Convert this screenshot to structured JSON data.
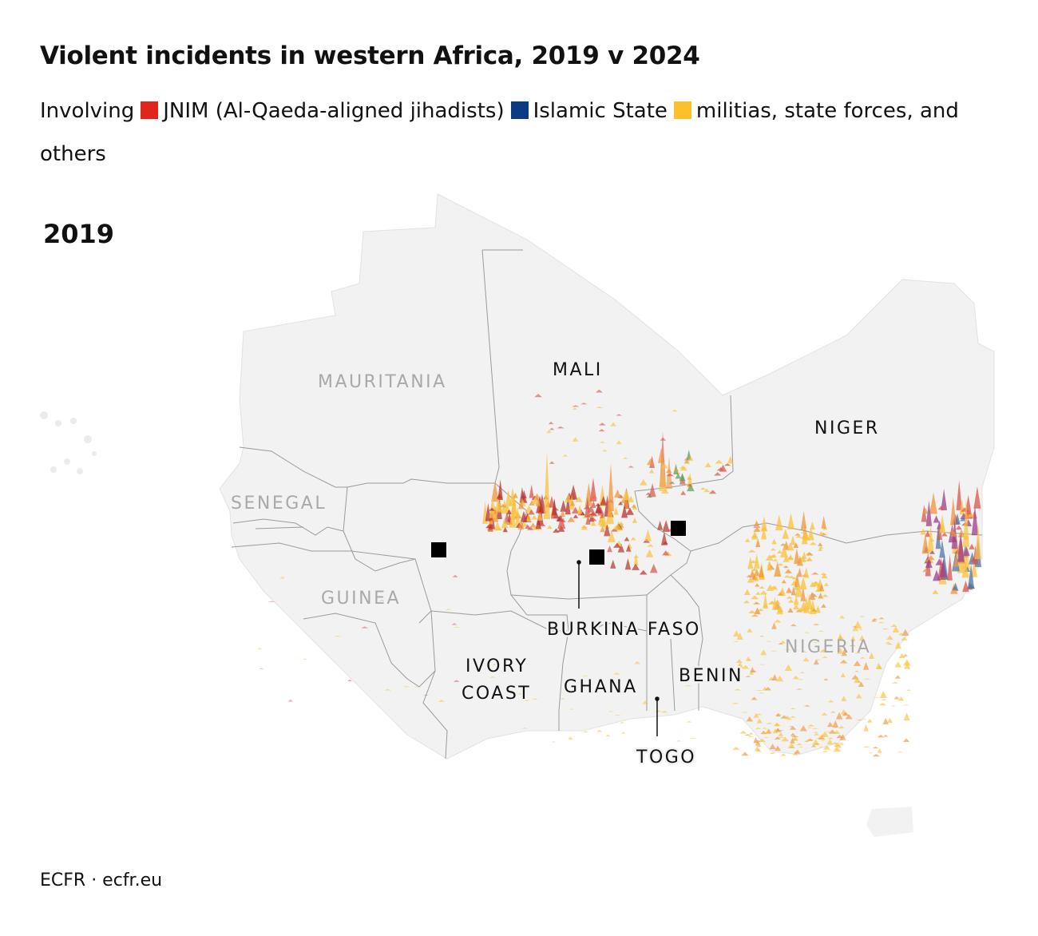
{
  "title": "Violent incidents in western Africa, 2019 v 2024",
  "legend": {
    "prefix": "Involving",
    "items": [
      {
        "label": "JNIM (Al-Qaeda-aligned jihadists)",
        "color": "#e2261c"
      },
      {
        "label": "Islamic State",
        "color": "#0b3c83"
      },
      {
        "label": "militias, state forces, and others",
        "color": "#fcc02d"
      }
    ]
  },
  "year_label": "2019",
  "countries": {
    "mauritania": "MAURITANIA",
    "mali": "MALI",
    "niger": "NIGER",
    "senegal": "SENEGAL",
    "guinea": "GUINEA",
    "burkina_faso": "BURKINA FASO",
    "ivory_coast_line1": "IVORY",
    "ivory_coast_line2": "COAST",
    "ghana": "GHANA",
    "benin": "BENIN",
    "nigeria": "NIGERIA",
    "togo": "TOGO"
  },
  "colors": {
    "land": "#f2f2f2",
    "border": "#9a9a9a",
    "capital": "#000000",
    "jnim": "#e2261c",
    "islamic_state": "#0b3c83",
    "others": "#fcc02d"
  },
  "source": "ECFR · ecfr.eu"
}
